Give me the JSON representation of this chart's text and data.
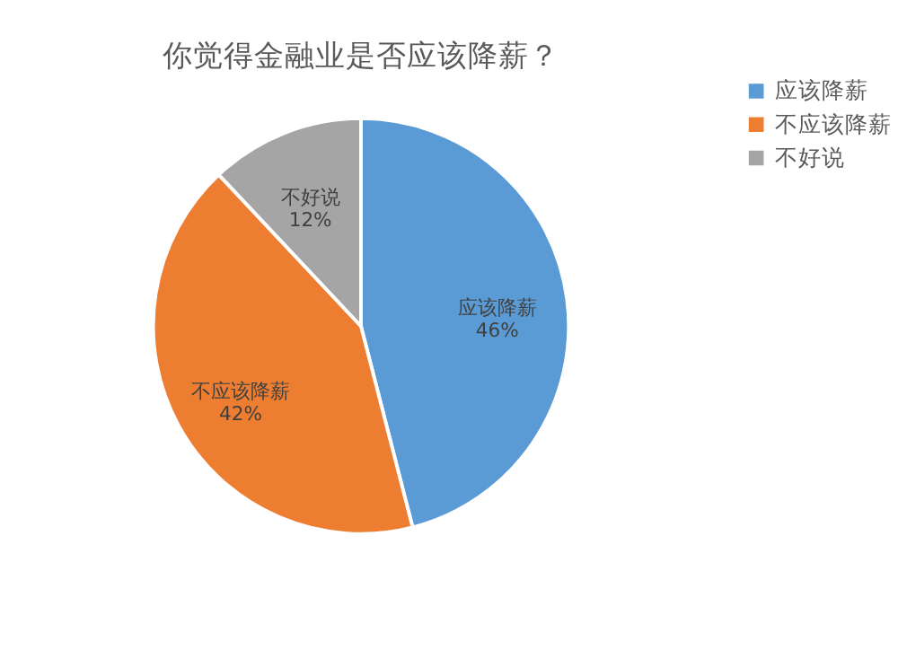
{
  "chart_data": {
    "type": "pie",
    "title": "你觉得金融业是否应该降薪？",
    "categories": [
      "应该降薪",
      "不应该降薪",
      "不好说"
    ],
    "values": [
      46,
      42,
      12
    ],
    "value_labels": [
      "46%",
      "42%",
      "12%"
    ],
    "colors": [
      "#5b9bd5",
      "#ed7d31",
      "#a5a5a5"
    ],
    "legend": "right"
  }
}
